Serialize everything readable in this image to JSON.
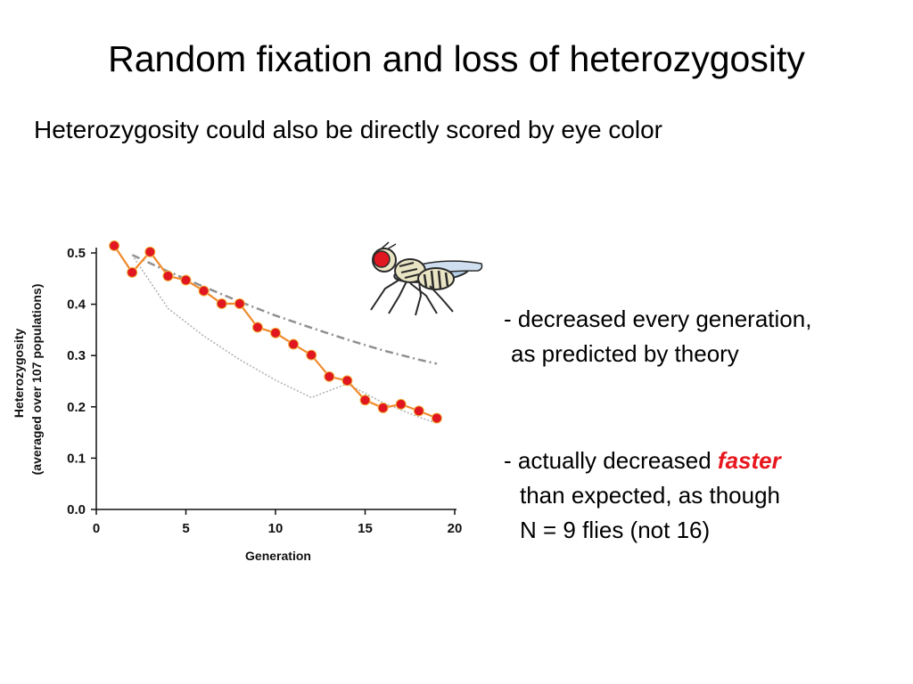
{
  "slide": {
    "title": "Random fixation and loss of heterozygosity",
    "subtitle": "Heterozygosity could also be directly scored by eye color"
  },
  "notes": {
    "note1_line1": "- decreased every generation,",
    "note1_line2": "as predicted by theory",
    "note2_prefix": "- actually decreased ",
    "note2_emphasis": "faster",
    "note2_line2": "than expected, as though",
    "note2_line3": "N = 9 flies (not 16)"
  },
  "colors": {
    "observed_line": "#f08a2c",
    "observed_marker": "#e01620",
    "theory_line": "#909090",
    "emphasis": "#e8161d"
  },
  "icons": {
    "fly": "fruit-fly-icon"
  },
  "chart_data": {
    "type": "line",
    "xlabel": "Generation",
    "ylabel_line1": "Heterozygosity",
    "ylabel_line2": "(averaged over 107 populations)",
    "xlim": [
      0,
      20
    ],
    "ylim": [
      0,
      0.5
    ],
    "x_ticks": [
      0,
      5,
      10,
      15,
      20
    ],
    "y_ticks": [
      0.0,
      0.1,
      0.2,
      0.3,
      0.4,
      0.5
    ],
    "y_tick_labels": [
      "0.0",
      "0.1",
      "0.2",
      "0.3",
      "0.4",
      "0.5"
    ],
    "grid": false,
    "series": [
      {
        "style": "observed",
        "x": [
          1,
          2,
          3,
          4,
          5,
          6,
          7,
          8,
          9,
          10,
          11,
          12,
          13,
          14,
          15,
          16,
          17,
          18,
          19
        ],
        "y": [
          0.514,
          0.462,
          0.502,
          0.455,
          0.447,
          0.426,
          0.401,
          0.401,
          0.355,
          0.344,
          0.322,
          0.301,
          0.259,
          0.251,
          0.213,
          0.198,
          0.205,
          0.192,
          0.178
        ]
      },
      {
        "style": "expected-dashed",
        "x": [
          2,
          4,
          6,
          8,
          10,
          12,
          14,
          16,
          18,
          19
        ],
        "y": [
          0.496,
          0.464,
          0.434,
          0.405,
          0.378,
          0.354,
          0.331,
          0.31,
          0.292,
          0.284
        ]
      },
      {
        "style": "expected-dotted",
        "x": [
          2,
          4,
          6,
          8,
          10,
          12,
          14,
          16,
          18,
          19
        ],
        "y": [
          0.496,
          0.392,
          0.338,
          0.292,
          0.252,
          0.218,
          0.245,
          0.208,
          0.18,
          0.168
        ]
      }
    ]
  }
}
